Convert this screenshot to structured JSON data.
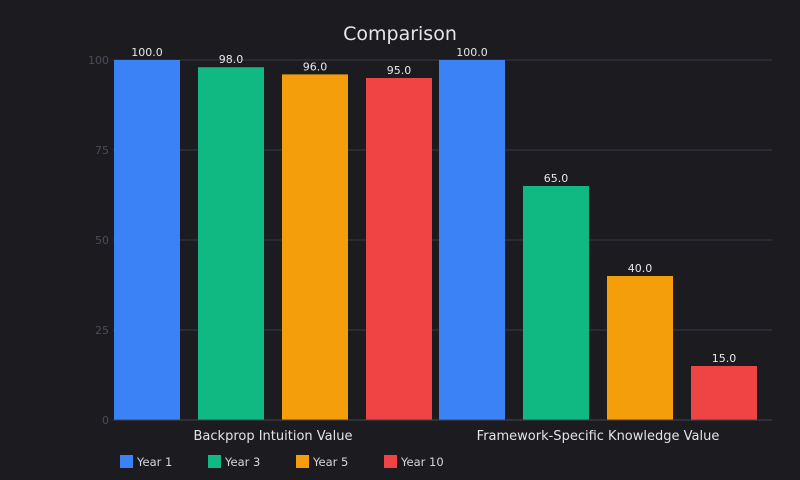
{
  "chart_data": {
    "type": "bar",
    "title": "Comparison",
    "xlabel": "",
    "ylabel": "",
    "categories": [
      "Backprop Intuition Value",
      "Framework-Specific Knowledge Value"
    ],
    "series": [
      {
        "name": "Year 1",
        "color": "#3b82f6",
        "values": [
          100.0,
          100.0
        ]
      },
      {
        "name": "Year 3",
        "color": "#10b981",
        "values": [
          98.0,
          65.0
        ]
      },
      {
        "name": "Year 5",
        "color": "#f59e0b",
        "values": [
          96.0,
          40.0
        ]
      },
      {
        "name": "Year 10",
        "color": "#ef4444",
        "values": [
          95.0,
          15.0
        ]
      }
    ],
    "ylim": [
      0,
      100
    ],
    "yticks": [
      "0",
      "25",
      "50",
      "75",
      "100"
    ],
    "grid": true,
    "legend_position": "bottom-left",
    "data_labels": true,
    "colors": {
      "background": "#1b1b20",
      "gridline": "#3a3a44",
      "axis": "#44444e"
    }
  }
}
